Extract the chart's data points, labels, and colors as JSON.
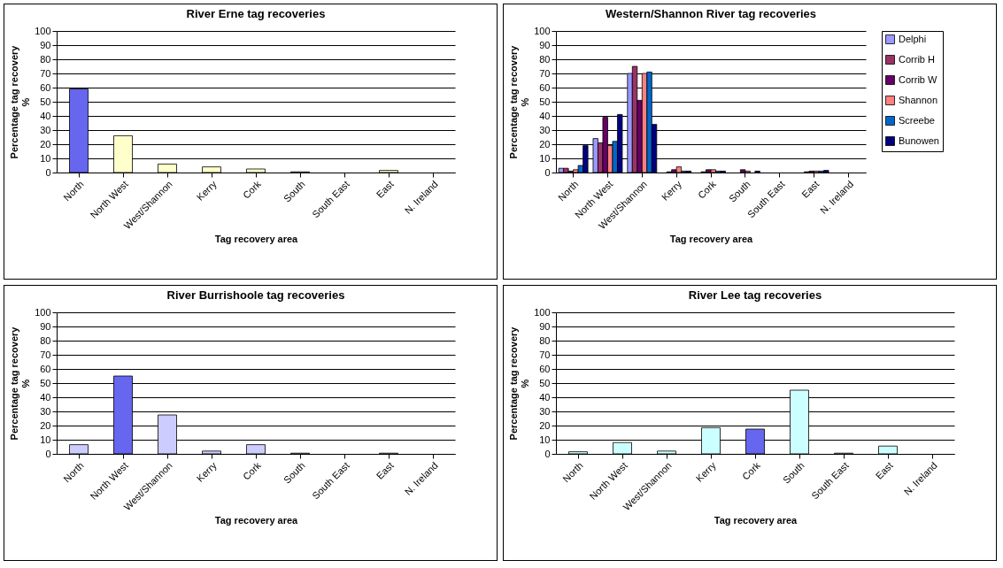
{
  "chart_data": [
    {
      "type": "bar",
      "title": "River Erne tag recoveries",
      "xlabel": "Tag recovery area",
      "ylabel": "Percentage tag recovery %",
      "categories": [
        "North",
        "North West",
        "West/Shannon",
        "Kerry",
        "Cork",
        "South",
        "South East",
        "East",
        "N. Ireland"
      ],
      "values": [
        59,
        26,
        6,
        4,
        2.5,
        0.5,
        0,
        1.5,
        0
      ],
      "colors": [
        "#6666ee",
        "#ffffcc",
        "#ffffcc",
        "#ffffcc",
        "#ffffcc",
        "#ffffcc",
        "#ffffcc",
        "#ffffcc",
        "#ffffcc"
      ],
      "ylim": [
        0,
        100
      ],
      "yticks": [
        0,
        10,
        20,
        30,
        40,
        50,
        60,
        70,
        80,
        90,
        100
      ],
      "grid": "y"
    },
    {
      "type": "bar",
      "title": "Western/Shannon River tag recoveries",
      "xlabel": "Tag recovery area",
      "ylabel": "Percentage tag recovery %",
      "categories": [
        "North",
        "North West",
        "West/Shannon",
        "Kerry",
        "Cork",
        "South",
        "South East",
        "East",
        "N. Ireland"
      ],
      "series": [
        {
          "name": "Delphi",
          "color": "#9999ff",
          "values": [
            3,
            24,
            70,
            0,
            0,
            0,
            0,
            0,
            0
          ]
        },
        {
          "name": "Corrib H",
          "color": "#993366",
          "values": [
            3,
            21,
            75,
            0.5,
            0.5,
            0,
            0,
            0.5,
            0
          ]
        },
        {
          "name": "Corrib W",
          "color": "#660066",
          "values": [
            1,
            39,
            51,
            2,
            2,
            2,
            0,
            1,
            0
          ]
        },
        {
          "name": "Shannon",
          "color": "#ff8080",
          "values": [
            2,
            19,
            70,
            4,
            2,
            1,
            0,
            1,
            0
          ]
        },
        {
          "name": "Screebe",
          "color": "#0066cc",
          "values": [
            5,
            22,
            71,
            1,
            1,
            0,
            0,
            1,
            0
          ]
        },
        {
          "name": "Bunowen",
          "color": "#000080",
          "values": [
            19,
            41,
            34,
            1,
            1,
            1,
            0,
            1.5,
            0
          ]
        }
      ],
      "ylim": [
        0,
        100
      ],
      "yticks": [
        0,
        10,
        20,
        30,
        40,
        50,
        60,
        70,
        80,
        90,
        100
      ],
      "grid": "y",
      "legend": "right"
    },
    {
      "type": "bar",
      "title": "River Burrishoole tag recoveries",
      "xlabel": "Tag recovery area",
      "ylabel": "Percentage tag recovery %",
      "categories": [
        "North",
        "North West",
        "West/Shannon",
        "Kerry",
        "Cork",
        "South",
        "South East",
        "East",
        "N. Ireland"
      ],
      "values": [
        6.5,
        55,
        27.5,
        2,
        6.5,
        0.5,
        0,
        0.5,
        0
      ],
      "colors": [
        "#ccccff",
        "#6666ee",
        "#ccccff",
        "#ccccff",
        "#ccccff",
        "#ccccff",
        "#ccccff",
        "#ccccff",
        "#ccccff"
      ],
      "ylim": [
        0,
        100
      ],
      "yticks": [
        0,
        10,
        20,
        30,
        40,
        50,
        60,
        70,
        80,
        90,
        100
      ],
      "grid": "y"
    },
    {
      "type": "bar",
      "title": "River Lee tag recoveries",
      "xlabel": "Tag recovery area",
      "ylabel": "Percentage tag recovery %",
      "categories": [
        "North",
        "North West",
        "West/Shannon",
        "Kerry",
        "Cork",
        "South",
        "South East",
        "East",
        "N. Ireland"
      ],
      "values": [
        1.5,
        8,
        2,
        18.5,
        17.5,
        45,
        0.5,
        5.5,
        0
      ],
      "colors": [
        "#ccffff",
        "#ccffff",
        "#ccffff",
        "#ccffff",
        "#6666ee",
        "#ccffff",
        "#ccffff",
        "#ccffff",
        "#ccffff"
      ],
      "ylim": [
        0,
        100
      ],
      "yticks": [
        0,
        10,
        20,
        30,
        40,
        50,
        60,
        70,
        80,
        90,
        100
      ],
      "grid": "y"
    }
  ]
}
